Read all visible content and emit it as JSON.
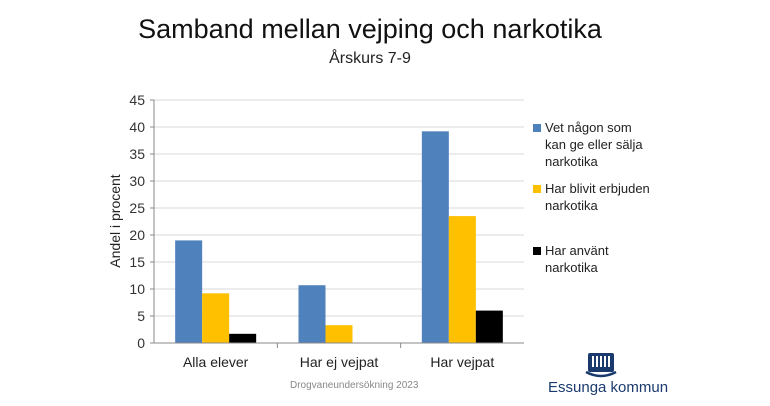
{
  "chart_data": {
    "type": "bar",
    "title": "Samband mellan vejping och narkotika",
    "subtitle": "Årskurs 7-9",
    "ylabel": "Andel i procent",
    "xlabel": "",
    "ylim": [
      0,
      45
    ],
    "yticks": [
      0,
      5,
      10,
      15,
      20,
      25,
      30,
      35,
      40,
      45
    ],
    "grid": true,
    "legend_position": "right",
    "categories": [
      "Alla elever",
      "Har ej vejpat",
      "Har vejpat"
    ],
    "series": [
      {
        "name": "Vet någon som kan ge eller sälja narkotika",
        "color": "#4f81bd",
        "values": [
          19.0,
          10.7,
          39.2
        ]
      },
      {
        "name": "Har blivit erbjuden narkotika",
        "color": "#ffc000",
        "values": [
          9.2,
          3.3,
          23.5
        ]
      },
      {
        "name": "Har använt narkotika",
        "color": "#000000",
        "values": [
          1.7,
          0,
          6.0
        ]
      }
    ]
  },
  "legend_lines": [
    [
      "Vet någon som",
      "kan ge eller sälja",
      "narkotika"
    ],
    [
      "Har blivit erbjuden",
      "narkotika"
    ],
    [
      "Har använt",
      "narkotika"
    ]
  ],
  "footer": "Drogvaneundersökning  2023",
  "logo": {
    "text": "Essunga kommun",
    "icon": "essunga-crest-icon",
    "color": "#1a3a6e"
  }
}
